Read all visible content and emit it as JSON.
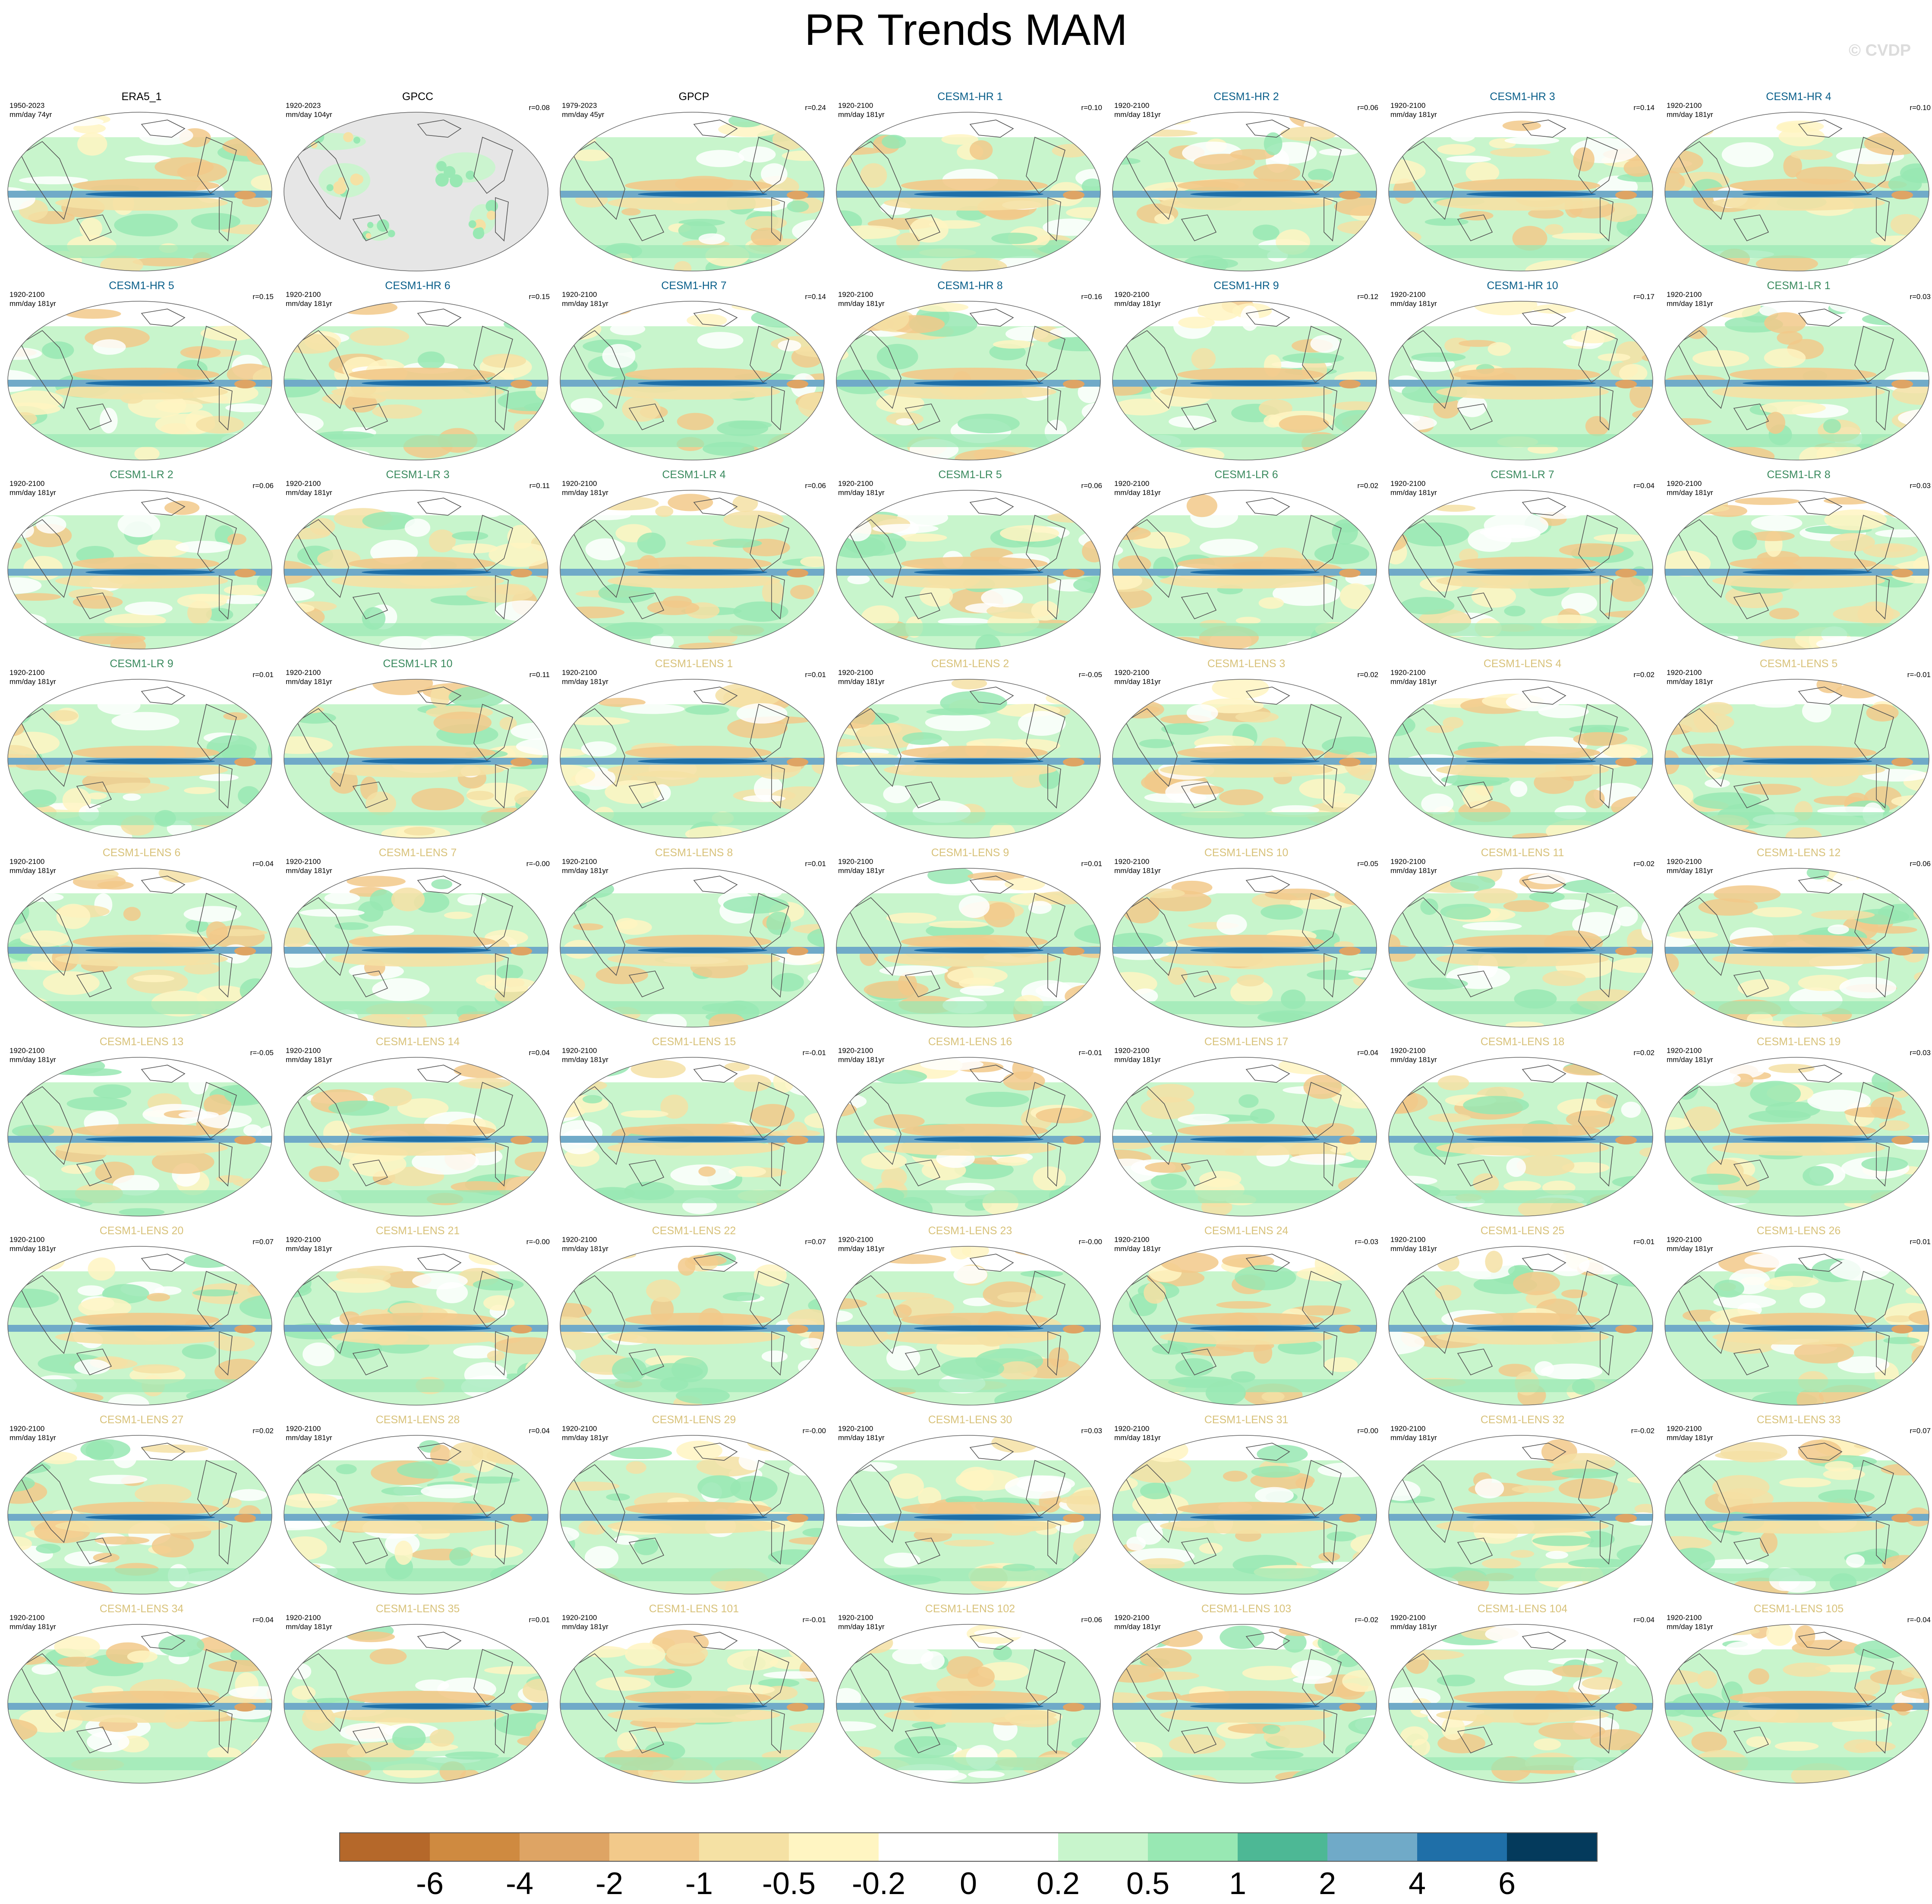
{
  "title": "PR Trends MAM",
  "watermark": "© CVDP",
  "palette": {
    "ocean_gray": "#e6e6e6",
    "coast": "#555555",
    "outline": "#666666"
  },
  "title_colors": {
    "obs": "#000000",
    "CESM1-HR": "#0a5f8a",
    "CESM1-LR": "#3a8a5e",
    "CESM1-LENS": "#d8c27a"
  },
  "panels": [
    {
      "title": "ERA5_1",
      "group": "obs",
      "period": "1950-2023",
      "units": "mm/day 74yr",
      "r": ""
    },
    {
      "title": "GPCC",
      "group": "obs",
      "period": "1920-2023",
      "units": "mm/day 104yr",
      "r": "r=0.08",
      "land_only": true
    },
    {
      "title": "GPCP",
      "group": "obs",
      "period": "1979-2023",
      "units": "mm/day 45yr",
      "r": "r=0.24"
    },
    {
      "title": "CESM1-HR 1",
      "group": "CESM1-HR",
      "period": "1920-2100",
      "units": "mm/day 181yr",
      "r": "r=0.10"
    },
    {
      "title": "CESM1-HR 2",
      "group": "CESM1-HR",
      "period": "1920-2100",
      "units": "mm/day 181yr",
      "r": "r=0.06"
    },
    {
      "title": "CESM1-HR 3",
      "group": "CESM1-HR",
      "period": "1920-2100",
      "units": "mm/day 181yr",
      "r": "r=0.14"
    },
    {
      "title": "CESM1-HR 4",
      "group": "CESM1-HR",
      "period": "1920-2100",
      "units": "mm/day 181yr",
      "r": "r=0.10"
    },
    {
      "title": "CESM1-HR 5",
      "group": "CESM1-HR",
      "period": "1920-2100",
      "units": "mm/day 181yr",
      "r": "r=0.15"
    },
    {
      "title": "CESM1-HR 6",
      "group": "CESM1-HR",
      "period": "1920-2100",
      "units": "mm/day 181yr",
      "r": "r=0.15"
    },
    {
      "title": "CESM1-HR 7",
      "group": "CESM1-HR",
      "period": "1920-2100",
      "units": "mm/day 181yr",
      "r": "r=0.14"
    },
    {
      "title": "CESM1-HR 8",
      "group": "CESM1-HR",
      "period": "1920-2100",
      "units": "mm/day 181yr",
      "r": "r=0.16"
    },
    {
      "title": "CESM1-HR 9",
      "group": "CESM1-HR",
      "period": "1920-2100",
      "units": "mm/day 181yr",
      "r": "r=0.12"
    },
    {
      "title": "CESM1-HR 10",
      "group": "CESM1-HR",
      "period": "1920-2100",
      "units": "mm/day 181yr",
      "r": "r=0.17"
    },
    {
      "title": "CESM1-LR 1",
      "group": "CESM1-LR",
      "period": "1920-2100",
      "units": "mm/day 181yr",
      "r": "r=0.03"
    },
    {
      "title": "CESM1-LR 2",
      "group": "CESM1-LR",
      "period": "1920-2100",
      "units": "mm/day 181yr",
      "r": "r=0.06"
    },
    {
      "title": "CESM1-LR 3",
      "group": "CESM1-LR",
      "period": "1920-2100",
      "units": "mm/day 181yr",
      "r": "r=0.11"
    },
    {
      "title": "CESM1-LR 4",
      "group": "CESM1-LR",
      "period": "1920-2100",
      "units": "mm/day 181yr",
      "r": "r=0.06"
    },
    {
      "title": "CESM1-LR 5",
      "group": "CESM1-LR",
      "period": "1920-2100",
      "units": "mm/day 181yr",
      "r": "r=0.06"
    },
    {
      "title": "CESM1-LR 6",
      "group": "CESM1-LR",
      "period": "1920-2100",
      "units": "mm/day 181yr",
      "r": "r=0.02"
    },
    {
      "title": "CESM1-LR 7",
      "group": "CESM1-LR",
      "period": "1920-2100",
      "units": "mm/day 181yr",
      "r": "r=0.04"
    },
    {
      "title": "CESM1-LR 8",
      "group": "CESM1-LR",
      "period": "1920-2100",
      "units": "mm/day 181yr",
      "r": "r=0.03"
    },
    {
      "title": "CESM1-LR 9",
      "group": "CESM1-LR",
      "period": "1920-2100",
      "units": "mm/day 181yr",
      "r": "r=0.01"
    },
    {
      "title": "CESM1-LR 10",
      "group": "CESM1-LR",
      "period": "1920-2100",
      "units": "mm/day 181yr",
      "r": "r=0.11"
    },
    {
      "title": "CESM1-LENS 1",
      "group": "CESM1-LENS",
      "period": "1920-2100",
      "units": "mm/day 181yr",
      "r": "r=0.01"
    },
    {
      "title": "CESM1-LENS 2",
      "group": "CESM1-LENS",
      "period": "1920-2100",
      "units": "mm/day 181yr",
      "r": "r=-0.05"
    },
    {
      "title": "CESM1-LENS 3",
      "group": "CESM1-LENS",
      "period": "1920-2100",
      "units": "mm/day 181yr",
      "r": "r=0.02"
    },
    {
      "title": "CESM1-LENS 4",
      "group": "CESM1-LENS",
      "period": "1920-2100",
      "units": "mm/day 181yr",
      "r": "r=0.02"
    },
    {
      "title": "CESM1-LENS 5",
      "group": "CESM1-LENS",
      "period": "1920-2100",
      "units": "mm/day 181yr",
      "r": "r=-0.01"
    },
    {
      "title": "CESM1-LENS 6",
      "group": "CESM1-LENS",
      "period": "1920-2100",
      "units": "mm/day 181yr",
      "r": "r=0.04"
    },
    {
      "title": "CESM1-LENS 7",
      "group": "CESM1-LENS",
      "period": "1920-2100",
      "units": "mm/day 181yr",
      "r": "r=-0.00"
    },
    {
      "title": "CESM1-LENS 8",
      "group": "CESM1-LENS",
      "period": "1920-2100",
      "units": "mm/day 181yr",
      "r": "r=0.01"
    },
    {
      "title": "CESM1-LENS 9",
      "group": "CESM1-LENS",
      "period": "1920-2100",
      "units": "mm/day 181yr",
      "r": "r=0.01"
    },
    {
      "title": "CESM1-LENS 10",
      "group": "CESM1-LENS",
      "period": "1920-2100",
      "units": "mm/day 181yr",
      "r": "r=0.05"
    },
    {
      "title": "CESM1-LENS 11",
      "group": "CESM1-LENS",
      "period": "1920-2100",
      "units": "mm/day 181yr",
      "r": "r=0.02"
    },
    {
      "title": "CESM1-LENS 12",
      "group": "CESM1-LENS",
      "period": "1920-2100",
      "units": "mm/day 181yr",
      "r": "r=0.06"
    },
    {
      "title": "CESM1-LENS 13",
      "group": "CESM1-LENS",
      "period": "1920-2100",
      "units": "mm/day 181yr",
      "r": "r=-0.05"
    },
    {
      "title": "CESM1-LENS 14",
      "group": "CESM1-LENS",
      "period": "1920-2100",
      "units": "mm/day 181yr",
      "r": "r=0.04"
    },
    {
      "title": "CESM1-LENS 15",
      "group": "CESM1-LENS",
      "period": "1920-2100",
      "units": "mm/day 181yr",
      "r": "r=-0.01"
    },
    {
      "title": "CESM1-LENS 16",
      "group": "CESM1-LENS",
      "period": "1920-2100",
      "units": "mm/day 181yr",
      "r": "r=-0.01"
    },
    {
      "title": "CESM1-LENS 17",
      "group": "CESM1-LENS",
      "period": "1920-2100",
      "units": "mm/day 181yr",
      "r": "r=0.04"
    },
    {
      "title": "CESM1-LENS 18",
      "group": "CESM1-LENS",
      "period": "1920-2100",
      "units": "mm/day 181yr",
      "r": "r=0.02"
    },
    {
      "title": "CESM1-LENS 19",
      "group": "CESM1-LENS",
      "period": "1920-2100",
      "units": "mm/day 181yr",
      "r": "r=0.03"
    },
    {
      "title": "CESM1-LENS 20",
      "group": "CESM1-LENS",
      "period": "1920-2100",
      "units": "mm/day 181yr",
      "r": "r=0.07"
    },
    {
      "title": "CESM1-LENS 21",
      "group": "CESM1-LENS",
      "period": "1920-2100",
      "units": "mm/day 181yr",
      "r": "r=-0.00"
    },
    {
      "title": "CESM1-LENS 22",
      "group": "CESM1-LENS",
      "period": "1920-2100",
      "units": "mm/day 181yr",
      "r": "r=0.07"
    },
    {
      "title": "CESM1-LENS 23",
      "group": "CESM1-LENS",
      "period": "1920-2100",
      "units": "mm/day 181yr",
      "r": "r=-0.00"
    },
    {
      "title": "CESM1-LENS 24",
      "group": "CESM1-LENS",
      "period": "1920-2100",
      "units": "mm/day 181yr",
      "r": "r=-0.03"
    },
    {
      "title": "CESM1-LENS 25",
      "group": "CESM1-LENS",
      "period": "1920-2100",
      "units": "mm/day 181yr",
      "r": "r=0.01"
    },
    {
      "title": "CESM1-LENS 26",
      "group": "CESM1-LENS",
      "period": "1920-2100",
      "units": "mm/day 181yr",
      "r": "r=0.01"
    },
    {
      "title": "CESM1-LENS 27",
      "group": "CESM1-LENS",
      "period": "1920-2100",
      "units": "mm/day 181yr",
      "r": "r=0.02"
    },
    {
      "title": "CESM1-LENS 28",
      "group": "CESM1-LENS",
      "period": "1920-2100",
      "units": "mm/day 181yr",
      "r": "r=0.04"
    },
    {
      "title": "CESM1-LENS 29",
      "group": "CESM1-LENS",
      "period": "1920-2100",
      "units": "mm/day 181yr",
      "r": "r=-0.00"
    },
    {
      "title": "CESM1-LENS 30",
      "group": "CESM1-LENS",
      "period": "1920-2100",
      "units": "mm/day 181yr",
      "r": "r=0.03"
    },
    {
      "title": "CESM1-LENS 31",
      "group": "CESM1-LENS",
      "period": "1920-2100",
      "units": "mm/day 181yr",
      "r": "r=0.00"
    },
    {
      "title": "CESM1-LENS 32",
      "group": "CESM1-LENS",
      "period": "1920-2100",
      "units": "mm/day 181yr",
      "r": "r=-0.02"
    },
    {
      "title": "CESM1-LENS 33",
      "group": "CESM1-LENS",
      "period": "1920-2100",
      "units": "mm/day 181yr",
      "r": "r=0.07"
    },
    {
      "title": "CESM1-LENS 34",
      "group": "CESM1-LENS",
      "period": "1920-2100",
      "units": "mm/day 181yr",
      "r": "r=0.04"
    },
    {
      "title": "CESM1-LENS 35",
      "group": "CESM1-LENS",
      "period": "1920-2100",
      "units": "mm/day 181yr",
      "r": "r=0.01"
    },
    {
      "title": "CESM1-LENS 101",
      "group": "CESM1-LENS",
      "period": "1920-2100",
      "units": "mm/day 181yr",
      "r": "r=-0.01"
    },
    {
      "title": "CESM1-LENS 102",
      "group": "CESM1-LENS",
      "period": "1920-2100",
      "units": "mm/day 181yr",
      "r": "r=0.06"
    },
    {
      "title": "CESM1-LENS 103",
      "group": "CESM1-LENS",
      "period": "1920-2100",
      "units": "mm/day 181yr",
      "r": "r=-0.02"
    },
    {
      "title": "CESM1-LENS 104",
      "group": "CESM1-LENS",
      "period": "1920-2100",
      "units": "mm/day 181yr",
      "r": "r=0.04"
    },
    {
      "title": "CESM1-LENS 105",
      "group": "CESM1-LENS",
      "period": "1920-2100",
      "units": "mm/day 181yr",
      "r": "r=-0.04"
    }
  ],
  "colorbar": {
    "colors": [
      "#b5682a",
      "#cf8a40",
      "#dea464",
      "#f2c98a",
      "#f5e1a4",
      "#fff5c2",
      "#ffffff",
      "#ffffff",
      "#c8f5cc",
      "#98e8b3",
      "#4db895",
      "#70aac8",
      "#1f6fa8",
      "#043a5c"
    ],
    "labels": [
      "-6",
      "-4",
      "-2",
      "-1",
      "-0.5",
      "-0.2",
      "0",
      "0.2",
      "0.5",
      "1",
      "2",
      "4",
      "6"
    ]
  }
}
